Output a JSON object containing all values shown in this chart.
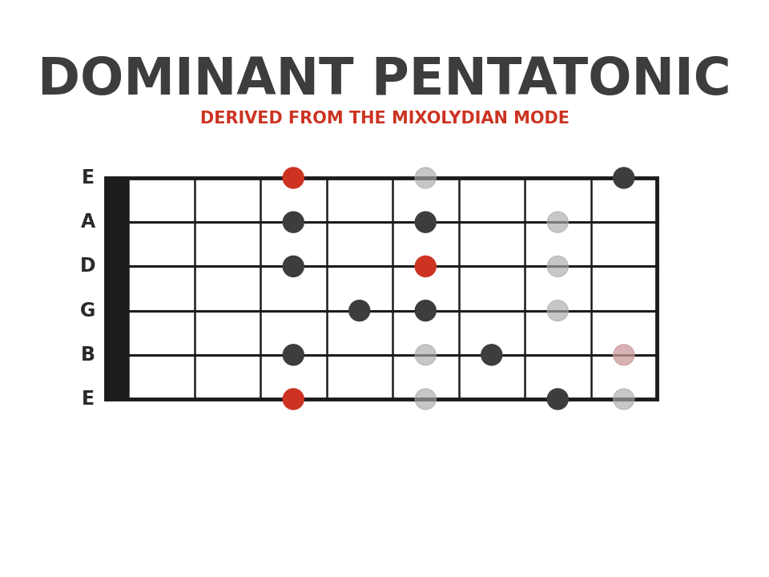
{
  "title": "DOMINANT PENTATONIC",
  "subtitle": "DERIVED FROM THE MIXOLYDIAN MODE",
  "title_color": "#3d3d3d",
  "subtitle_color": "#cc3322",
  "background_color": "#ffffff",
  "string_names": [
    "E",
    "B",
    "G",
    "D",
    "A",
    "E"
  ],
  "num_frets": 8,
  "dots": [
    {
      "string": 0,
      "fret": 3,
      "color": "#cc3322",
      "alpha": 1.0
    },
    {
      "string": 0,
      "fret": 5,
      "color": "#aaaaaa",
      "alpha": 0.65
    },
    {
      "string": 0,
      "fret": 7,
      "color": "#3d3d3d",
      "alpha": 1.0
    },
    {
      "string": 0,
      "fret": 8,
      "color": "#aaaaaa",
      "alpha": 0.65
    },
    {
      "string": 1,
      "fret": 3,
      "color": "#3d3d3d",
      "alpha": 1.0
    },
    {
      "string": 1,
      "fret": 5,
      "color": "#aaaaaa",
      "alpha": 0.65
    },
    {
      "string": 1,
      "fret": 6,
      "color": "#3d3d3d",
      "alpha": 1.0
    },
    {
      "string": 1,
      "fret": 8,
      "color": "#cc9999",
      "alpha": 0.75
    },
    {
      "string": 2,
      "fret": 4,
      "color": "#3d3d3d",
      "alpha": 1.0
    },
    {
      "string": 2,
      "fret": 5,
      "color": "#3d3d3d",
      "alpha": 1.0
    },
    {
      "string": 2,
      "fret": 7,
      "color": "#aaaaaa",
      "alpha": 0.65
    },
    {
      "string": 3,
      "fret": 3,
      "color": "#3d3d3d",
      "alpha": 1.0
    },
    {
      "string": 3,
      "fret": 5,
      "color": "#cc3322",
      "alpha": 1.0
    },
    {
      "string": 3,
      "fret": 7,
      "color": "#aaaaaa",
      "alpha": 0.65
    },
    {
      "string": 4,
      "fret": 3,
      "color": "#3d3d3d",
      "alpha": 1.0
    },
    {
      "string": 4,
      "fret": 5,
      "color": "#3d3d3d",
      "alpha": 1.0
    },
    {
      "string": 4,
      "fret": 7,
      "color": "#aaaaaa",
      "alpha": 0.65
    },
    {
      "string": 5,
      "fret": 3,
      "color": "#cc3322",
      "alpha": 1.0
    },
    {
      "string": 5,
      "fret": 5,
      "color": "#aaaaaa",
      "alpha": 0.65
    },
    {
      "string": 5,
      "fret": 8,
      "color": "#3d3d3d",
      "alpha": 1.0
    }
  ]
}
